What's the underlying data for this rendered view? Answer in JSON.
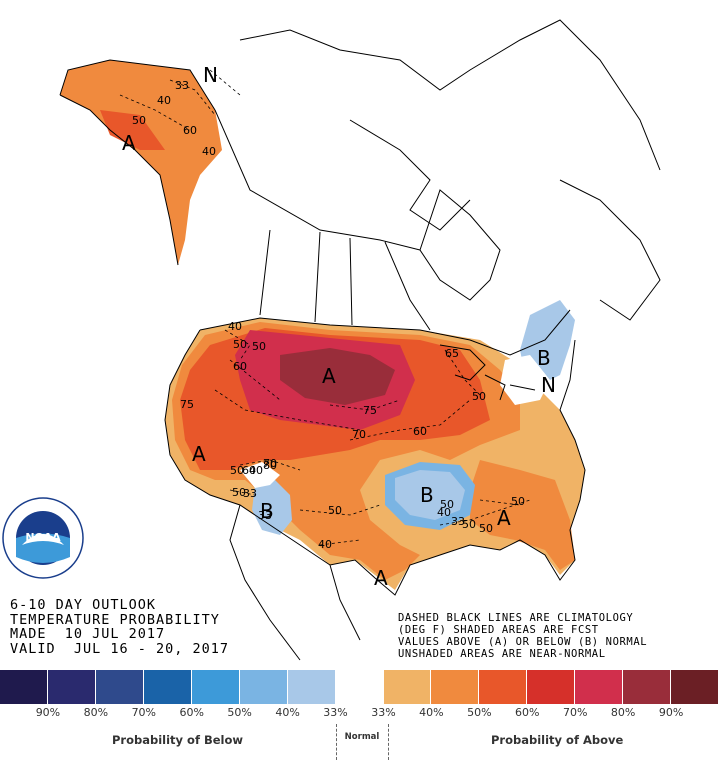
{
  "title": {
    "line1": "6-10 DAY OUTLOOK",
    "line2": "TEMPERATURE PROBABILITY",
    "line3": "MADE  10 JUL 2017",
    "line4": "VALID  JUL 16 - 20, 2017"
  },
  "notes": {
    "line1": "DASHED BLACK LINES ARE CLIMATOLOGY",
    "line2": "(DEG F) SHADED AREAS ARE FCST",
    "line3": "VALUES ABOVE (A) OR BELOW (B) NORMAL",
    "line4": "UNSHADED AREAS ARE NEAR-NORMAL"
  },
  "logo": {
    "text": "NOAA",
    "ring_text": "U.S. DEPARTMENT OF COMMERCE"
  },
  "legend": {
    "colors": [
      "#1f1a4d",
      "#2a2a6e",
      "#2f4a8c",
      "#1a63a8",
      "#3d9ad9",
      "#7ab4e3",
      "#a8c8e8",
      "#ffffff",
      "#f0b366",
      "#f08a3e",
      "#e8572a",
      "#d6302a",
      "#d12f4c",
      "#992d3a",
      "#6b1f25"
    ],
    "ticks": [
      "90%",
      "80%",
      "70%",
      "60%",
      "50%",
      "40%",
      "33%",
      "33%",
      "40%",
      "50%",
      "60%",
      "70%",
      "80%",
      "90%"
    ],
    "below_label": "Probability of Below",
    "normal_label": "Normal",
    "above_label": "Probability of Above"
  },
  "map_labels": {
    "category_labels": [
      "A",
      "A",
      "A",
      "A",
      "A",
      "B",
      "B",
      "B",
      "N",
      "N"
    ],
    "contour_values": [
      "33",
      "40",
      "50",
      "60",
      "40",
      "40",
      "50",
      "60",
      "75",
      "70",
      "50",
      "60",
      "70",
      "75",
      "65",
      "50",
      "60",
      "50",
      "50",
      "40",
      "33",
      "50",
      "33",
      "50",
      "40",
      "80",
      "50",
      "40",
      "33",
      "50",
      "50"
    ]
  }
}
